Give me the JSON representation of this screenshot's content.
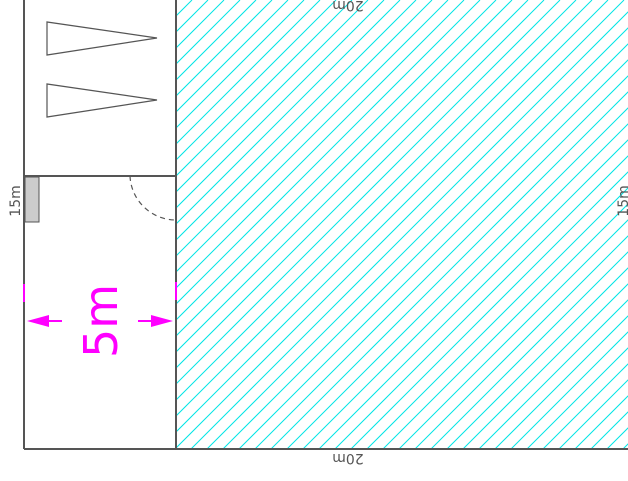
{
  "dimensions": {
    "top": "20m",
    "bottom": "20m",
    "left": "15m",
    "right": "15m"
  },
  "annotation": {
    "width_label": "5m"
  },
  "colors": {
    "outline": "#555555",
    "hatch": "#00e5e5",
    "annotation": "#ff00ff",
    "background": "#ffffff"
  },
  "icons": [
    "bed-icon",
    "bed-icon",
    "door-swing-icon",
    "arrow-left-icon",
    "arrow-right-icon"
  ]
}
